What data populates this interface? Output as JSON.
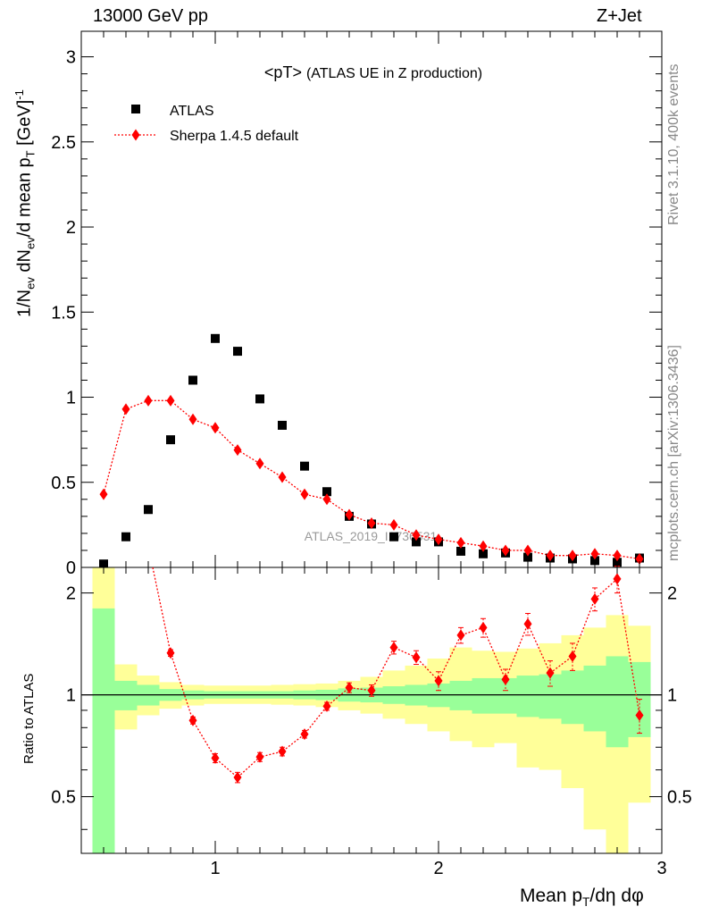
{
  "header": {
    "left": "13000 GeV pp",
    "right": "Z+Jet"
  },
  "side_text": {
    "rivet": "Rivet 3.1.10,  400k events",
    "mcplots": "mcplots.cern.ch [arXiv:1306.3436]"
  },
  "chart_data": [
    {
      "type": "scatter",
      "panel": "main",
      "title": "<pT>",
      "subtitle": "(ATLAS UE in Z production)",
      "watermark": "ATLAS_2019_I1736531",
      "ylabel": {
        "base": "1/N",
        "sub1": "ev",
        "mid1": " dN",
        "sub2": "ev",
        "mid2": "/d mean p",
        "sub3": "T",
        "mid3": " [GeV]",
        "sup": "-1"
      },
      "xlim": [
        0.4,
        3.0
      ],
      "ylim": [
        0,
        3.15
      ],
      "y_ticks": [
        0,
        0.5,
        1,
        1.5,
        2,
        2.5,
        3
      ],
      "y_tick_labels": [
        "0",
        "0.5",
        "1",
        "1.5",
        "2",
        "2.5",
        "3"
      ],
      "legend_position": "top-left",
      "series": [
        {
          "name": "ATLAS",
          "color": "#000000",
          "marker": "square",
          "x": [
            0.5,
            0.6,
            0.7,
            0.8,
            0.9,
            1.0,
            1.1,
            1.2,
            1.3,
            1.4,
            1.5,
            1.6,
            1.7,
            1.8,
            1.9,
            2.0,
            2.1,
            2.2,
            2.3,
            2.4,
            2.5,
            2.6,
            2.7,
            2.8,
            2.9
          ],
          "y": [
            0.02,
            0.18,
            0.34,
            0.75,
            1.1,
            1.345,
            1.27,
            0.99,
            0.835,
            0.595,
            0.445,
            0.3,
            0.255,
            0.18,
            0.15,
            0.15,
            0.095,
            0.08,
            0.085,
            0.06,
            0.055,
            0.05,
            0.04,
            0.03,
            0.055
          ]
        },
        {
          "name": "Sherpa 1.4.5 default",
          "color": "#ff0000",
          "marker": "diamond",
          "line": "dotted",
          "x": [
            0.5,
            0.6,
            0.7,
            0.8,
            0.9,
            1.0,
            1.1,
            1.2,
            1.3,
            1.4,
            1.5,
            1.6,
            1.7,
            1.8,
            1.9,
            2.0,
            2.1,
            2.2,
            2.3,
            2.4,
            2.5,
            2.6,
            2.7,
            2.8,
            2.9
          ],
          "y": [
            0.43,
            0.93,
            0.98,
            0.98,
            0.87,
            0.82,
            0.69,
            0.61,
            0.53,
            0.43,
            0.4,
            0.31,
            0.26,
            0.25,
            0.19,
            0.165,
            0.145,
            0.125,
            0.1,
            0.1,
            0.07,
            0.07,
            0.08,
            0.07,
            0.05
          ]
        }
      ]
    },
    {
      "type": "scatter",
      "panel": "ratio",
      "ylabel": "Ratio to ATLAS",
      "xlabel": {
        "base": "Mean p",
        "sub": "T",
        "rest": "/dη dφ"
      },
      "xlim": [
        0.4,
        3.0
      ],
      "ylim": [
        0.34,
        2.38
      ],
      "x_ticks": [
        1,
        2,
        3
      ],
      "x_tick_labels": [
        "1",
        "2",
        "3"
      ],
      "y_ticks": [
        0.5,
        1,
        2
      ],
      "y_tick_labels": [
        "0.5",
        "1",
        "2"
      ],
      "band_edges": [
        0.45,
        0.55,
        0.65,
        0.75,
        0.85,
        0.95,
        1.05,
        1.15,
        1.25,
        1.35,
        1.45,
        1.55,
        1.65,
        1.75,
        1.85,
        1.95,
        2.05,
        2.15,
        2.25,
        2.35,
        2.45,
        2.55,
        2.65,
        2.75,
        2.85,
        2.95
      ],
      "stat_band": {
        "color": "#99ff99",
        "lo": [
          0.34,
          0.9,
          0.93,
          0.96,
          0.97,
          0.975,
          0.975,
          0.975,
          0.975,
          0.97,
          0.965,
          0.955,
          0.95,
          0.94,
          0.93,
          0.92,
          0.9,
          0.88,
          0.88,
          0.86,
          0.85,
          0.82,
          0.78,
          0.7,
          0.75
        ],
        "hi": [
          1.8,
          1.1,
          1.07,
          1.04,
          1.03,
          1.025,
          1.025,
          1.025,
          1.025,
          1.03,
          1.035,
          1.045,
          1.05,
          1.06,
          1.07,
          1.08,
          1.1,
          1.12,
          1.12,
          1.14,
          1.15,
          1.18,
          1.22,
          1.3,
          1.25
        ]
      },
      "total_band": {
        "color": "#ffff99",
        "lo": [
          0.34,
          0.79,
          0.87,
          0.91,
          0.93,
          0.94,
          0.94,
          0.94,
          0.935,
          0.93,
          0.92,
          0.9,
          0.88,
          0.85,
          0.82,
          0.78,
          0.73,
          0.7,
          0.72,
          0.61,
          0.6,
          0.53,
          0.4,
          0.34,
          0.48
        ],
        "hi": [
          2.38,
          1.23,
          1.14,
          1.09,
          1.07,
          1.065,
          1.065,
          1.065,
          1.07,
          1.075,
          1.08,
          1.1,
          1.13,
          1.18,
          1.22,
          1.28,
          1.38,
          1.35,
          1.34,
          1.37,
          1.42,
          1.5,
          1.58,
          1.72,
          1.6
        ]
      },
      "reference_line": 1.0,
      "series": [
        {
          "name": "Sherpa 1.4.5 default",
          "color": "#ff0000",
          "marker": "diamond",
          "line": "dotted",
          "x": [
            0.8,
            0.9,
            1.0,
            1.1,
            1.2,
            1.3,
            1.4,
            1.5,
            1.6,
            1.7,
            1.8,
            1.9,
            2.0,
            2.1,
            2.2,
            2.3,
            2.4,
            2.5,
            2.6,
            2.7,
            2.8,
            2.9
          ],
          "y": [
            1.33,
            0.84,
            0.65,
            0.57,
            0.655,
            0.68,
            0.765,
            0.925,
            1.05,
            1.03,
            1.38,
            1.29,
            1.1,
            1.5,
            1.58,
            1.11,
            1.62,
            1.16,
            1.3,
            1.92,
            2.2,
            0.87
          ],
          "err": [
            0.03,
            0.02,
            0.02,
            0.02,
            0.02,
            0.02,
            0.02,
            0.025,
            0.035,
            0.04,
            0.06,
            0.06,
            0.07,
            0.08,
            0.1,
            0.08,
            0.12,
            0.1,
            0.12,
            0.15,
            0.2,
            0.1
          ]
        }
      ],
      "offscale_start": {
        "x": 0.72,
        "y_top": 2.38
      }
    }
  ]
}
